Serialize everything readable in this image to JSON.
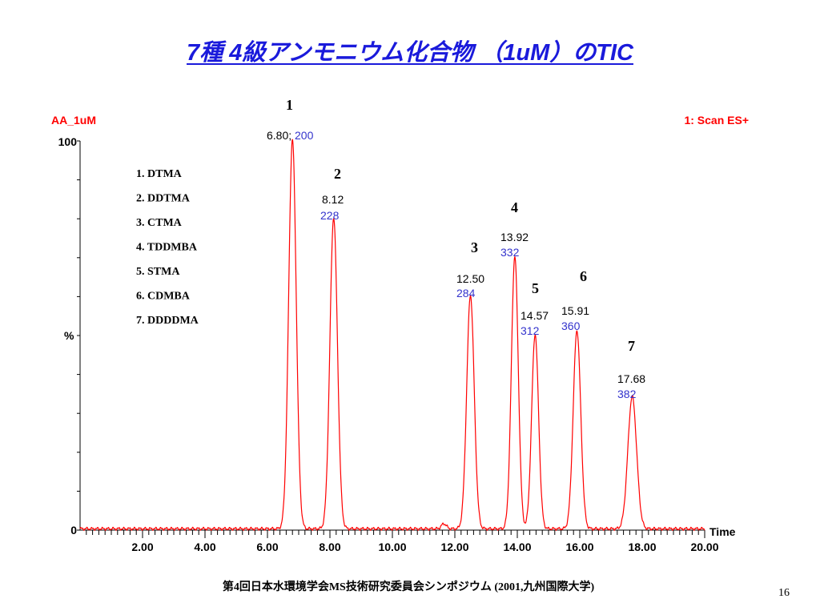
{
  "slide": {
    "title": "7種 4級アンモニウム化合物 （1uM）のTIC",
    "footer": "第4回日本水環境学会MS技術研究委員会シンポジウム (2001,九州国際大学)",
    "page_number": "16"
  },
  "chart_data": {
    "type": "line",
    "title": "",
    "sample_label": "AA_1uM",
    "scan_label": "1: Scan ES+",
    "xlabel": "Time",
    "ylabel": "%",
    "xlim": [
      0.0,
      20.0
    ],
    "ylim": [
      0,
      100
    ],
    "x_ticks": [
      "2.00",
      "4.00",
      "6.00",
      "8.00",
      "10.00",
      "12.00",
      "14.00",
      "16.00",
      "18.00",
      "20.00"
    ],
    "y_ticks": [
      "0",
      "100"
    ],
    "line_color": "#ff0000",
    "label_color": "#3333cc",
    "grid": false,
    "legend": {
      "position": "top-left",
      "entries": [
        "1. DTMA",
        "2. DDTMA",
        "3. CTMA",
        "4. TDDMBA",
        "5. STMA",
        "6. CDMBA",
        "7. DDDDMA"
      ]
    },
    "peaks": [
      {
        "number": "1",
        "rt": 6.8,
        "rt_label": "6.80;",
        "mz": "200",
        "height": 100,
        "width": 0.12
      },
      {
        "number": "2",
        "rt": 8.12,
        "rt_label": "8.12",
        "mz": "228",
        "height": 80,
        "width": 0.12
      },
      {
        "number": "3",
        "rt": 12.5,
        "rt_label": "12.50",
        "mz": "284",
        "height": 60,
        "width": 0.12
      },
      {
        "number": "4",
        "rt": 13.92,
        "rt_label": "13.92",
        "mz": "332",
        "height": 70,
        "width": 0.11
      },
      {
        "number": "5",
        "rt": 14.57,
        "rt_label": "14.57",
        "mz": "312",
        "height": 50,
        "width": 0.11
      },
      {
        "number": "6",
        "rt": 15.91,
        "rt_label": "15.91",
        "mz": "360",
        "height": 51,
        "width": 0.12
      },
      {
        "number": "7",
        "rt": 17.68,
        "rt_label": "17.68",
        "mz": "382",
        "height": 34,
        "width": 0.14
      }
    ],
    "minor_peaks": [
      {
        "rt": 11.65,
        "height": 1.3,
        "width": 0.08
      }
    ]
  }
}
